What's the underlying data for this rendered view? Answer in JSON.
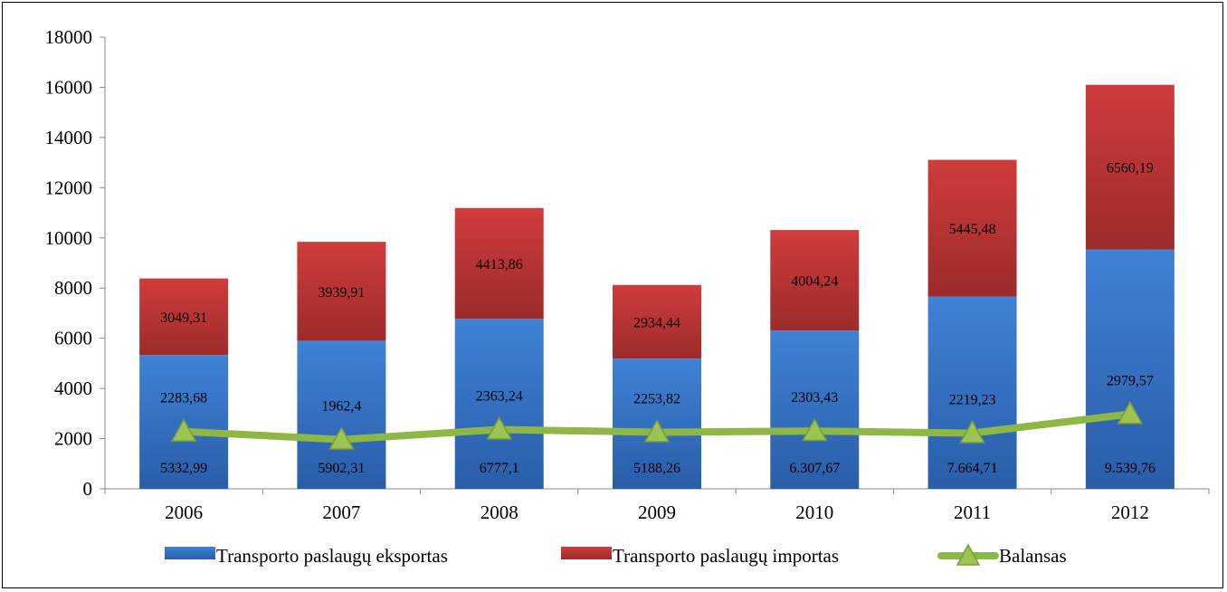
{
  "chart_data": {
    "type": "bar",
    "stacked": true,
    "categories": [
      "2006",
      "2007",
      "2008",
      "2009",
      "2010",
      "2011",
      "2012"
    ],
    "series": [
      {
        "name": "Transporto paslaugų eksportas",
        "type": "bar",
        "color": "#3a78c8",
        "values": [
          5332.99,
          5902.31,
          6777.1,
          5188.26,
          6307.67,
          7664.71,
          9539.76
        ],
        "labels": [
          "5332,99",
          "5902,31",
          "6777,1",
          "5188,26",
          "6.307,67",
          "7.664,71",
          "9.539,76"
        ]
      },
      {
        "name": "Transporto paslaugų importas",
        "type": "bar",
        "color": "#c9393a",
        "values": [
          3049.31,
          3939.91,
          4413.86,
          2934.44,
          4004.24,
          5445.48,
          6560.19
        ],
        "labels": [
          "3049,31",
          "3939,91",
          "4413,86",
          "2934,44",
          "4004,24",
          "5445,48",
          "6560,19"
        ]
      },
      {
        "name": "Balansas",
        "type": "line",
        "color": "#8db846",
        "marker": "triangle",
        "values": [
          2283.68,
          1962.4,
          2363.24,
          2253.82,
          2303.43,
          2219.23,
          2979.57
        ],
        "labels": [
          "2283,68",
          "1962,4",
          "2363,24",
          "2253,82",
          "2303,43",
          "2219,23",
          "2979,57"
        ]
      }
    ],
    "yticks": [
      "0",
      "2000",
      "4000",
      "6000",
      "8000",
      "10000",
      "12000",
      "14000",
      "16000",
      "18000"
    ],
    "ylim": [
      0,
      18000
    ],
    "legend_position": "bottom",
    "grid": false
  }
}
